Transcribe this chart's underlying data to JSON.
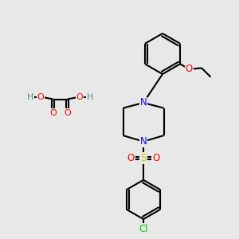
{
  "bg_color": "#e8e8e8",
  "atom_colors": {
    "N": "#0000ff",
    "O": "#ff0000",
    "S": "#cccc00",
    "Cl": "#00cc00",
    "C": "#000000",
    "H": "#5a8a8a"
  }
}
